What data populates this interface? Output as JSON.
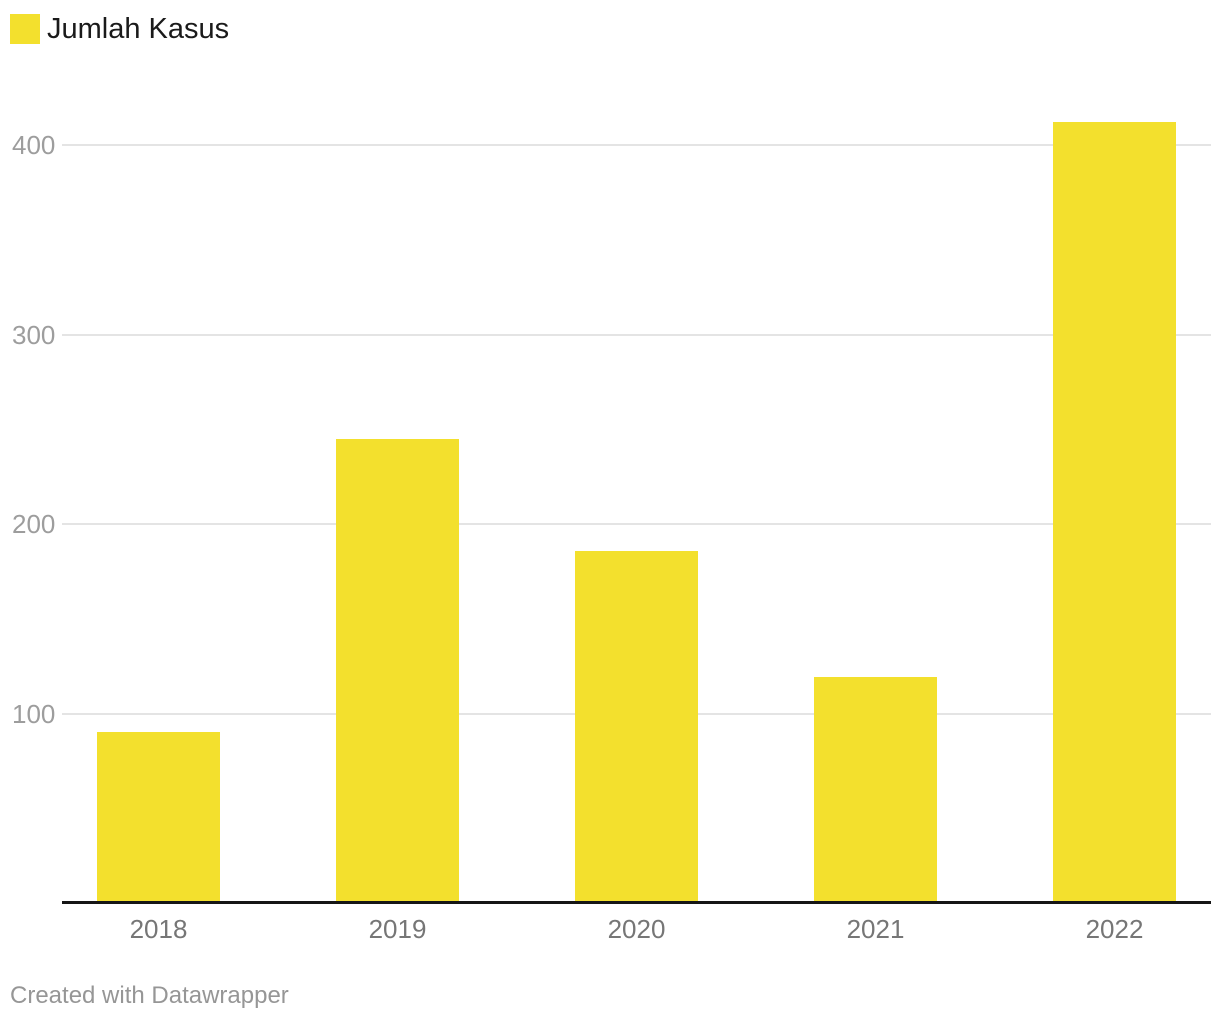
{
  "legend": {
    "label": "Jumlah Kasus"
  },
  "footer": {
    "text": "Created with Datawrapper"
  },
  "colors": {
    "bar": "#f3e02d",
    "gridline": "#e4e4e4",
    "axis": "#161616",
    "ytick": "#9d9d9d",
    "xtick": "#767676",
    "legend_text": "#1a1a1a",
    "footer_text": "#969696"
  },
  "chart_data": {
    "type": "bar",
    "title": "",
    "xlabel": "",
    "ylabel": "",
    "series_name": "Jumlah Kasus",
    "categories": [
      "2018",
      "2019",
      "2020",
      "2021",
      "2022"
    ],
    "values": [
      90,
      245,
      186,
      119,
      412
    ],
    "yticks": [
      100,
      200,
      300,
      400
    ],
    "ylim": [
      0,
      430
    ],
    "grid": true,
    "legend_position": "top-left",
    "bar_color": "#f3e02d"
  }
}
